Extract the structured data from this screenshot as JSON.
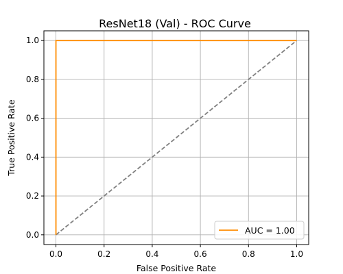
{
  "chart_data": {
    "type": "line",
    "title": "ResNet18 (Val) - ROC Curve",
    "xlabel": "False Positive Rate",
    "ylabel": "True Positive Rate",
    "xlim": [
      -0.05,
      1.05
    ],
    "ylim": [
      -0.05,
      1.05
    ],
    "xticks": [
      0.0,
      0.2,
      0.4,
      0.6,
      0.8,
      1.0
    ],
    "yticks": [
      0.0,
      0.2,
      0.4,
      0.6,
      0.8,
      1.0
    ],
    "xtick_labels": [
      "0.0",
      "0.2",
      "0.4",
      "0.6",
      "0.8",
      "1.0"
    ],
    "ytick_labels": [
      "0.0",
      "0.2",
      "0.4",
      "0.6",
      "0.8",
      "1.0"
    ],
    "grid": true,
    "legend_position": "bottom-right",
    "series": [
      {
        "name": "AUC = 1.00",
        "color": "#ff8c00",
        "style": "solid",
        "x": [
          0.0,
          0.0,
          1.0
        ],
        "y": [
          0.0,
          1.0,
          1.0
        ]
      },
      {
        "color": "#808080",
        "style": "dashed",
        "x": [
          0.0,
          1.0
        ],
        "y": [
          0.0,
          1.0
        ]
      }
    ]
  }
}
